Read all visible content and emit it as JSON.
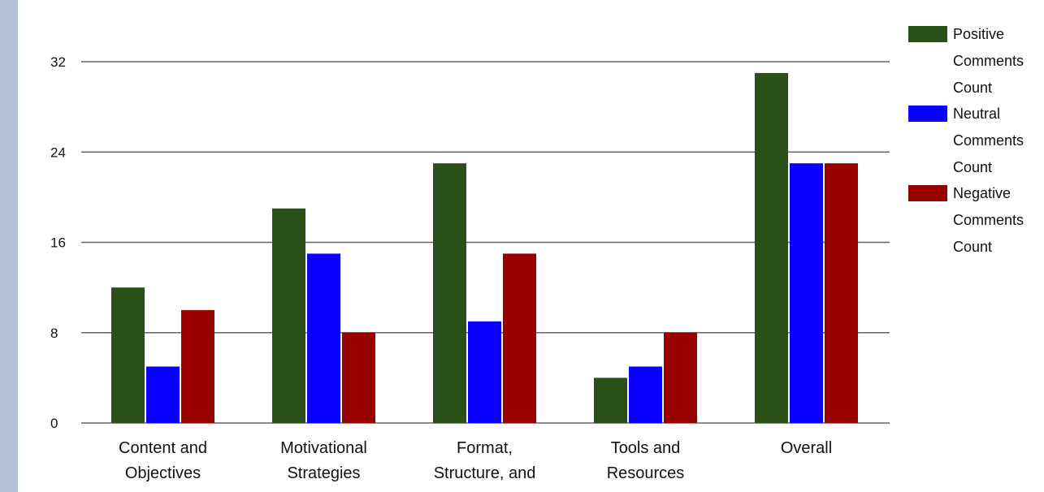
{
  "chart_data": {
    "type": "bar",
    "categories": [
      [
        "Content and",
        "Objectives"
      ],
      [
        "Motivational",
        "Strategies"
      ],
      [
        "Format,",
        "Structure, and"
      ],
      [
        "Tools and",
        "Resources"
      ],
      [
        "Overall"
      ]
    ],
    "series": [
      {
        "name": [
          "Positive",
          "Comments",
          "Count"
        ],
        "color": "#2b5017",
        "values": [
          12,
          19,
          23,
          4,
          31
        ]
      },
      {
        "name": [
          "Neutral",
          "Comments",
          "Count"
        ],
        "color": "#0a00ff",
        "values": [
          5,
          15,
          9,
          5,
          23
        ]
      },
      {
        "name": [
          "Negative",
          "Comments",
          "Count"
        ],
        "color": "#990000",
        "values": [
          10,
          8,
          15,
          8,
          23
        ]
      }
    ],
    "yticks": [
      "0",
      "8",
      "16",
      "24",
      "32"
    ],
    "ylim": [
      0,
      32
    ],
    "grid": true,
    "legend_position": "right",
    "colors": {
      "sidebar": "#b3c2d7",
      "grid": "#666666"
    }
  }
}
